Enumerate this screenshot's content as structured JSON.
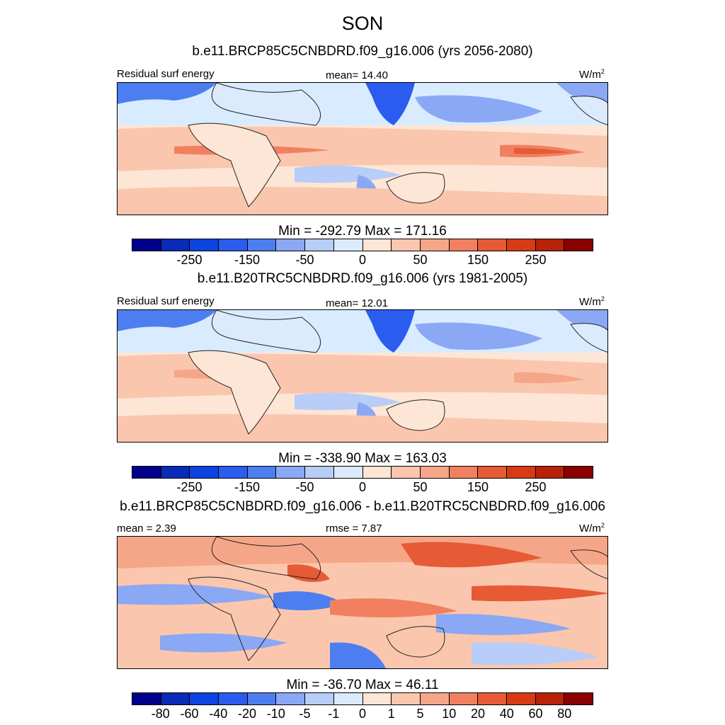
{
  "figure": {
    "season": "SON"
  },
  "panels": [
    {
      "title": "b.e11.BRCP85C5CNBDRD.f09_g16.006 (yrs 2056-2080)",
      "left_label": "Residual surf energy",
      "center_label": "mean=  14.40",
      "units": "W/m",
      "units_sup": "2",
      "colorbar_title": "Min = -292.79 Max = 171.16",
      "map_type": "field"
    },
    {
      "title": "b.e11.B20TRC5CNBDRD.f09_g16.006 (yrs 1981-2005)",
      "left_label": "Residual surf energy",
      "center_label": "mean=  12.01",
      "units": "W/m",
      "units_sup": "2",
      "colorbar_title": "Min = -338.90 Max = 163.03",
      "map_type": "field"
    },
    {
      "title": "b.e11.BRCP85C5CNBDRD.f09_g16.006 - b.e11.B20TRC5CNBDRD.f09_g16.006",
      "left_label": "mean =   2.39",
      "center_label": "rmse =   7.87",
      "units": "W/m",
      "units_sup": "2",
      "colorbar_title": "Min = -36.70 Max =  46.11",
      "map_type": "diff"
    }
  ],
  "colorbars": {
    "field": {
      "colors": [
        "#00008b",
        "#0a2ab8",
        "#0b44e0",
        "#2a5cf0",
        "#4d7ef0",
        "#8aa8f4",
        "#b8cdf8",
        "#dbeafc",
        "#fde6d5",
        "#fbc6ae",
        "#f6a688",
        "#f08060",
        "#e65a36",
        "#d83a14",
        "#b82208",
        "#8b0000"
      ],
      "tick_labels": [
        "-250",
        "-150",
        "-50",
        "0",
        "50",
        "150",
        "250"
      ],
      "tick_positions": [
        2,
        4,
        6,
        8,
        10,
        12,
        14
      ]
    },
    "diff": {
      "colors": [
        "#00008b",
        "#0a2ab8",
        "#0b44e0",
        "#2a5cf0",
        "#4d7ef0",
        "#8aa8f4",
        "#b8cdf8",
        "#dbeafc",
        "#fde6d5",
        "#fbc6ae",
        "#f6a688",
        "#f08060",
        "#e65a36",
        "#d83a14",
        "#b82208",
        "#8b0000"
      ],
      "tick_labels": [
        "-80",
        "-60",
        "-40",
        "-20",
        "-10",
        "-5",
        "-1",
        "0",
        "1",
        "5",
        "10",
        "20",
        "40",
        "60",
        "80"
      ],
      "tick_positions": [
        1,
        2,
        3,
        4,
        5,
        6,
        7,
        8,
        9,
        10,
        11,
        12,
        13,
        14,
        15
      ]
    }
  }
}
